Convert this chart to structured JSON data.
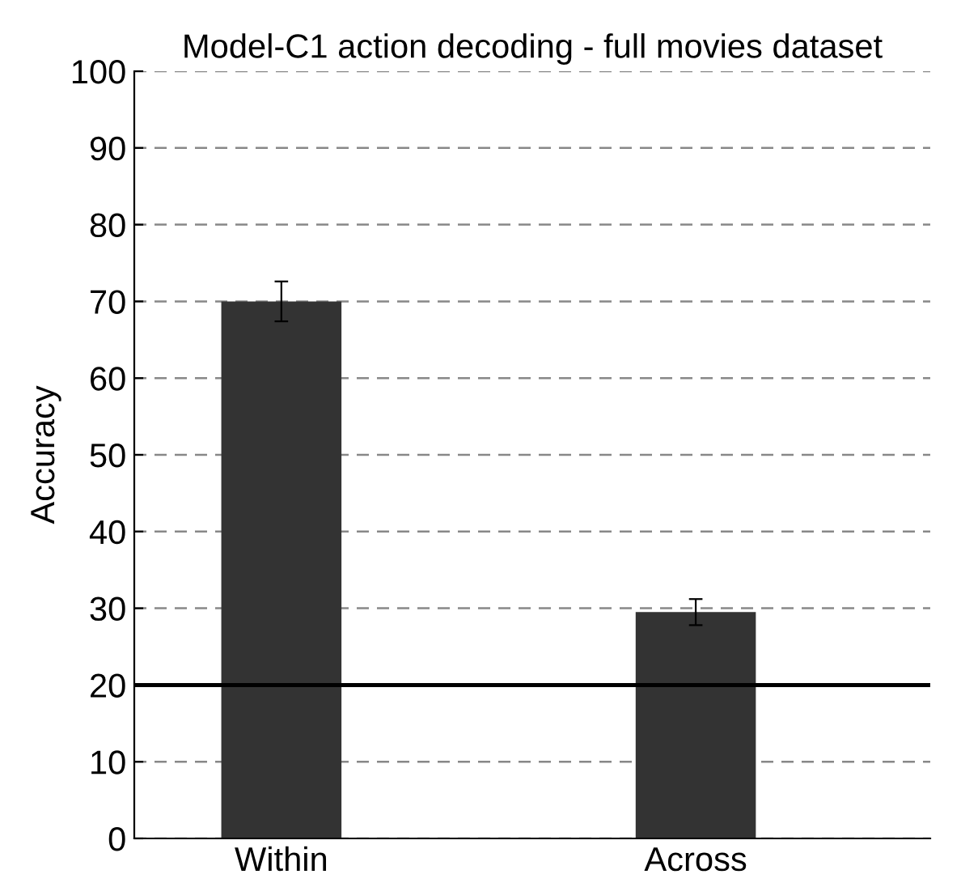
{
  "chart_data": {
    "type": "bar",
    "title": "Model-C1 action decoding - full movies dataset",
    "ylabel": "Accuracy",
    "categories": [
      "Within",
      "Across"
    ],
    "values": [
      70,
      29.5
    ],
    "errors": [
      2.6,
      1.7
    ],
    "color": "#333333",
    "ylim": [
      0,
      100
    ],
    "yticks": [
      0,
      10,
      20,
      30,
      40,
      50,
      60,
      70,
      80,
      90,
      100
    ],
    "grid": "y",
    "ref_lines": [
      {
        "axis": "y",
        "value": 20,
        "label": null,
        "color": "#000000",
        "line_style": "solid"
      }
    ]
  }
}
